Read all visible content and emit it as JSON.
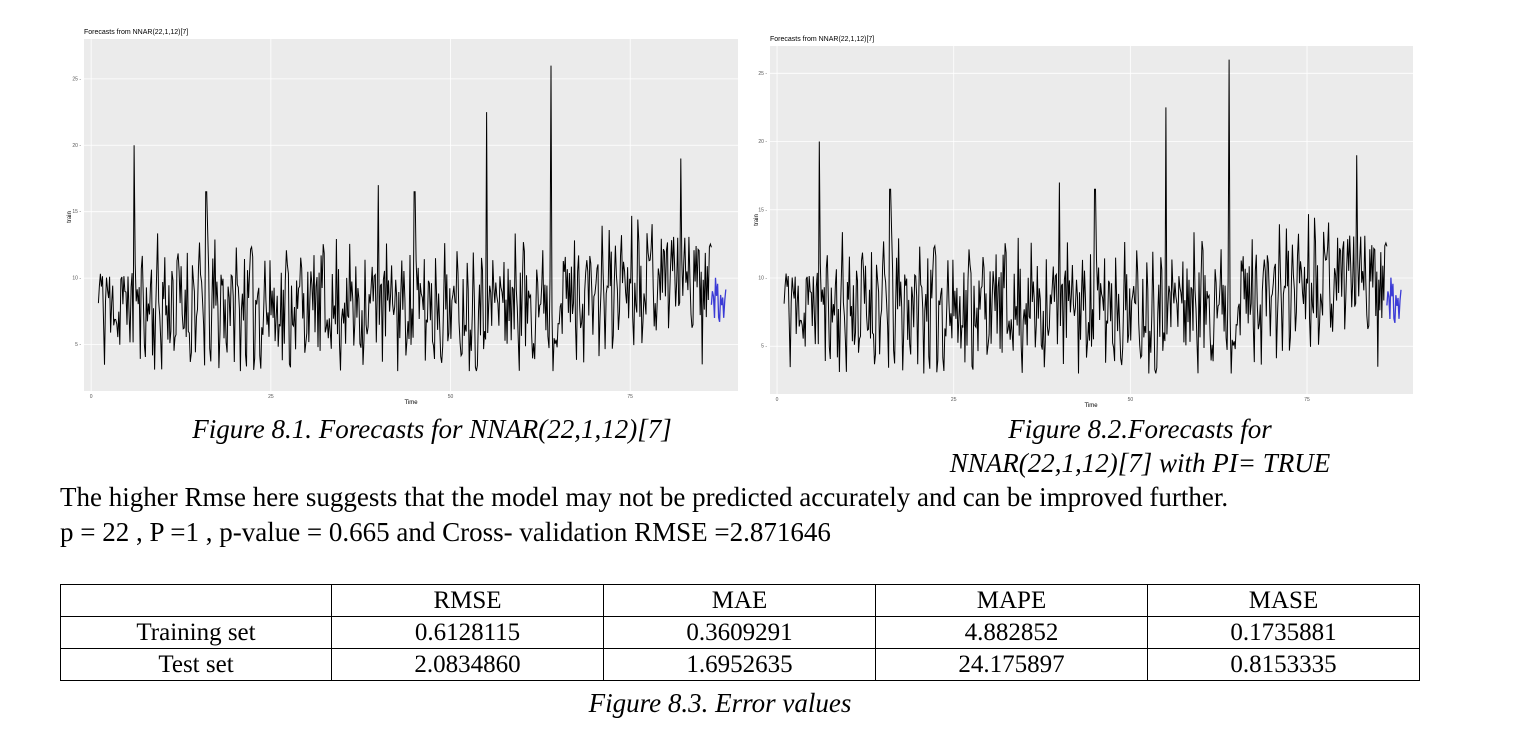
{
  "figures": [
    {
      "plot_title": "Forecasts from NNAR(22,1,12)[7]",
      "xlabel": "Time",
      "ylabel": "train",
      "caption": "Figure 8.1. Forecasts for NNAR(22,1,12)[7]"
    },
    {
      "plot_title": "Forecasts from NNAR(22,1,12)[7]",
      "xlabel": "Time",
      "ylabel": "train",
      "caption_line1": "Figure 8.2.Forecasts for",
      "caption_line2": "NNAR(22,1,12)[7] with PI= TRUE"
    }
  ],
  "chart_data": [
    {
      "type": "line",
      "title": "Forecasts from NNAR(22,1,12)[7]",
      "xlabel": "Time",
      "ylabel": "train",
      "x_ticks": [
        0,
        25,
        50,
        75
      ],
      "y_ticks": [
        5,
        10,
        15,
        20,
        25
      ],
      "xlim": [
        -1,
        90
      ],
      "ylim": [
        1.5,
        28
      ],
      "grid": true,
      "series": [
        {
          "color": "#000000",
          "x_start": 1,
          "x_end": 86.3
        },
        {
          "color": "#3b3bd6",
          "x_start": 86.3,
          "x_end": 88.3
        }
      ]
    },
    {
      "type": "line",
      "title": "Forecasts from NNAR(22,1,12)[7]",
      "xlabel": "Time",
      "ylabel": "train",
      "x_ticks": [
        0,
        25,
        50,
        75
      ],
      "y_ticks": [
        5,
        10,
        15,
        20,
        25
      ],
      "xlim": [
        -1,
        90
      ],
      "ylim": [
        1.5,
        27
      ],
      "grid": true,
      "series": [
        {
          "color": "#000000",
          "x_start": 1,
          "x_end": 86.3
        },
        {
          "color": "#3b3bd6",
          "x_start": 86.3,
          "x_end": 88.3
        }
      ]
    }
  ],
  "text": {
    "line1": "The higher Rmse here suggests that the model may not be predicted accurately and can be improved further.",
    "line2": "p = 22 , P =1 , p-value = 0.665 and Cross- validation RMSE =2.871646"
  },
  "table": {
    "headers": [
      "",
      "RMSE",
      "MAE",
      "MAPE",
      "MASE"
    ],
    "rows": [
      [
        "Training set",
        "0.6128115",
        "0.3609291",
        "4.882852",
        "0.1735881"
      ],
      [
        "Test set",
        "2.0834860",
        "1.6952635",
        "24.175897",
        "0.8153335"
      ]
    ],
    "caption": "Figure 8.3. Error values"
  }
}
